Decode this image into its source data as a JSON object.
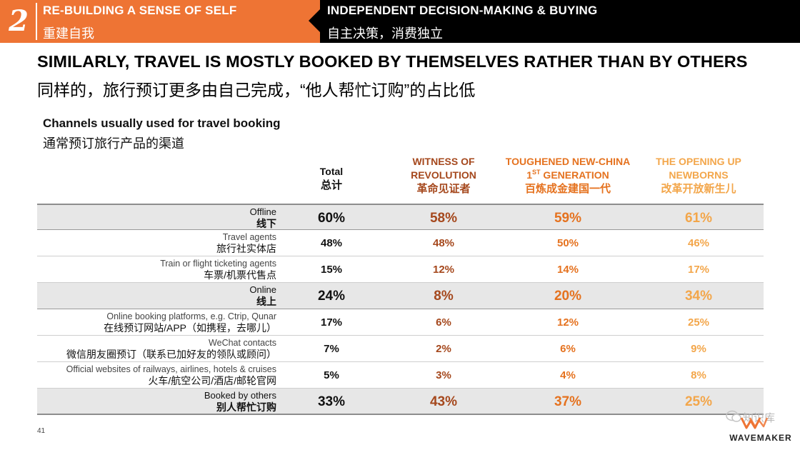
{
  "header": {
    "section_number": "2",
    "left_en": "RE-BUILDING A SENSE OF SELF",
    "left_zh": "重建自我",
    "right_en": "INDEPENDENT DECISION-MAKING & BUYING",
    "right_zh": "自主决策，消费独立",
    "colors": {
      "orange": "#ee7434",
      "black": "#000000"
    }
  },
  "title": {
    "en": "SIMILARLY, TRAVEL IS MOSTLY BOOKED BY THEMSELVES RATHER THAN BY OTHERS",
    "zh": "同样的，旅行预订更多由自己完成，“他人帮忙订购”的占比低"
  },
  "subtitle": {
    "en": "Channels usually used for travel booking",
    "zh": "通常预订旅行产品的渠道"
  },
  "columns": {
    "total": {
      "en": "Total",
      "zh": "总计"
    },
    "witness": {
      "en_line1": "WITNESS OF",
      "en_line2": "REVOLUTION",
      "zh": "革命见证者",
      "color": "#a5481d"
    },
    "tough": {
      "en_line1": "TOUGHENED NEW-CHINA",
      "en_line2_num": "1",
      "en_line2_sup": "ST",
      "en_line2_rest": " GENERATION",
      "zh": "百炼成金建国一代",
      "color": "#e5721f"
    },
    "open": {
      "en_line1": "THE OPENING UP",
      "en_line2": "NEWBORNS",
      "zh": "改革开放新生儿",
      "color": "#f3a64a"
    }
  },
  "rows": [
    {
      "label_en": "Offline",
      "label_zh": "线下",
      "major": true,
      "total": "60%",
      "witness": "58%",
      "tough": "59%",
      "open": "61%"
    },
    {
      "label_en": "Travel agents",
      "label_zh": "旅行社实体店",
      "major": false,
      "total": "48%",
      "witness": "48%",
      "tough": "50%",
      "open": "46%"
    },
    {
      "label_en": "Train or flight ticketing agents",
      "label_zh": "车票/机票代售点",
      "major": false,
      "total": "15%",
      "witness": "12%",
      "tough": "14%",
      "open": "17%"
    },
    {
      "label_en": "Online",
      "label_zh": "线上",
      "major": true,
      "total": "24%",
      "witness": "8%",
      "tough": "20%",
      "open": "34%"
    },
    {
      "label_en": "Online booking platforms, e.g. Ctrip, Qunar",
      "label_zh": "在线预订网站/APP（如携程，去哪儿）",
      "major": false,
      "total": "17%",
      "witness": "6%",
      "tough": "12%",
      "open": "25%"
    },
    {
      "label_en": "WeChat contacts",
      "label_zh": "微信朋友圈预订（联系已加好友的领队或顾问）",
      "major": false,
      "total": "7%",
      "witness": "2%",
      "tough": "6%",
      "open": "9%"
    },
    {
      "label_en": "Official websites of railways, airlines, hotels & cruises",
      "label_zh": "火车/航空公司/酒店/邮轮官网",
      "major": false,
      "total": "5%",
      "witness": "3%",
      "tough": "4%",
      "open": "8%"
    },
    {
      "label_en": "Booked by others",
      "label_zh": "别人帮忙订购",
      "major": true,
      "total": "33%",
      "witness": "43%",
      "tough": "37%",
      "open": "25%"
    }
  ],
  "footer": {
    "page_number": "41",
    "logo_text": "WAVEMAKER",
    "watermark": "知识库",
    "logo_icon": "wavemaker-logo-icon",
    "watermark_icon": "wechat-icon"
  }
}
